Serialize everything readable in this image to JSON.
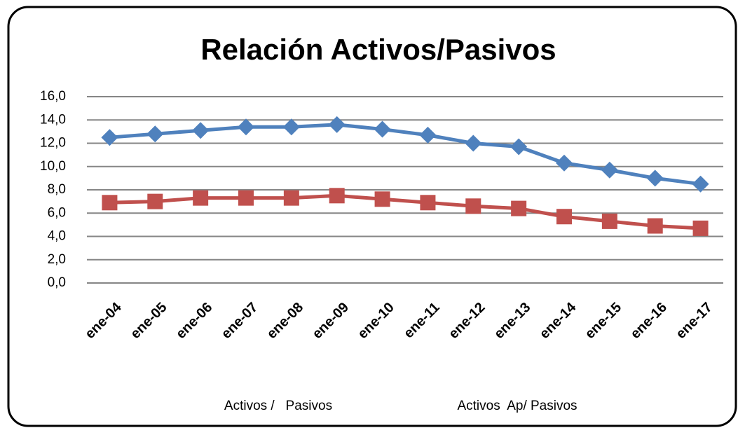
{
  "chart_data": {
    "type": "line",
    "title": "Relación Activos/Pasivos",
    "categories": [
      "ene-04",
      "ene-05",
      "ene-06",
      "ene-07",
      "ene-08",
      "ene-09",
      "ene-10",
      "ene-11",
      "ene-12",
      "ene-13",
      "ene-14",
      "ene-15",
      "ene-16",
      "ene-17"
    ],
    "series": [
      {
        "name": "Activos /   Pasivos",
        "color": "#4f81bd",
        "marker": "diamond",
        "values": [
          12.5,
          12.8,
          13.1,
          13.4,
          13.4,
          13.6,
          13.2,
          12.7,
          12.0,
          11.7,
          10.3,
          9.7,
          9.0,
          8.5
        ]
      },
      {
        "name": "Activos  Ap/ Pasivos",
        "color": "#c0504d",
        "marker": "square",
        "values": [
          6.9,
          7.0,
          7.3,
          7.3,
          7.3,
          7.5,
          7.2,
          6.9,
          6.6,
          6.4,
          5.7,
          5.3,
          4.9,
          4.7
        ]
      }
    ],
    "ylim": [
      0,
      16
    ],
    "yticks": [
      {
        "value": 0,
        "label": "0,0"
      },
      {
        "value": 2,
        "label": "2,0"
      },
      {
        "value": 4,
        "label": "4,0"
      },
      {
        "value": 6,
        "label": "6,0"
      },
      {
        "value": 8,
        "label": "8,0"
      },
      {
        "value": 10,
        "label": "10,0"
      },
      {
        "value": 12,
        "label": "12,0"
      },
      {
        "value": 14,
        "label": "14,0"
      },
      {
        "value": 16,
        "label": "16,0"
      }
    ],
    "grid": true,
    "legend": "bottom"
  }
}
